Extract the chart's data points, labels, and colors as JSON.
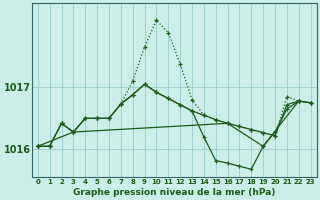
{
  "title": "Graphe pression niveau de la mer (hPa)",
  "background_color": "#cceee8",
  "grid_color": "#99cccc",
  "line_color": "#1a5c1a",
  "x_labels": [
    "0",
    "1",
    "2",
    "3",
    "4",
    "5",
    "6",
    "7",
    "8",
    "9",
    "10",
    "11",
    "12",
    "13",
    "14",
    "15",
    "16",
    "17",
    "18",
    "19",
    "20",
    "21",
    "22",
    "23"
  ],
  "ylim": [
    1015.55,
    1018.35
  ],
  "yticks": [
    1016,
    1017
  ],
  "peak_x": [
    0,
    1,
    2,
    3,
    4,
    5,
    6,
    7,
    8,
    9,
    10,
    11,
    12,
    13,
    14,
    15,
    16,
    17,
    18,
    19,
    20,
    21,
    22,
    23
  ],
  "peak_y": [
    1016.05,
    1016.05,
    1016.42,
    1016.28,
    1016.5,
    1016.5,
    1016.5,
    1016.73,
    1017.1,
    1017.65,
    1018.08,
    1017.88,
    1017.38,
    1016.8,
    1016.55,
    1016.48,
    1016.42,
    1016.37,
    1016.32,
    1016.27,
    1016.22,
    1016.85,
    1016.78,
    1016.75
  ],
  "flat_x": [
    0,
    1,
    2,
    3,
    4,
    5,
    6,
    7,
    8,
    9,
    10,
    11,
    12,
    13,
    14,
    15,
    16,
    17,
    18,
    19,
    20,
    21,
    22,
    23
  ],
  "flat_y": [
    1016.05,
    1016.05,
    1016.42,
    1016.28,
    1016.5,
    1016.5,
    1016.5,
    1016.73,
    1016.88,
    1017.05,
    1016.92,
    1016.82,
    1016.72,
    1016.62,
    1016.55,
    1016.48,
    1016.42,
    1016.37,
    1016.32,
    1016.27,
    1016.22,
    1016.72,
    1016.78,
    1016.75
  ],
  "low_x": [
    0,
    1,
    2,
    3,
    4,
    5,
    6,
    7,
    8,
    9,
    10,
    11,
    12,
    13,
    14,
    15,
    16,
    17,
    18,
    19,
    20,
    21,
    22,
    23
  ],
  "low_y": [
    1016.05,
    1016.05,
    1016.42,
    1016.28,
    1016.5,
    1016.5,
    1016.5,
    1016.73,
    1016.88,
    1017.05,
    1016.92,
    1016.82,
    1016.72,
    1016.62,
    1016.2,
    1015.82,
    1015.78,
    1015.73,
    1015.68,
    1016.05,
    1016.28,
    1016.65,
    1016.78,
    1016.75
  ],
  "sparse_x": [
    0,
    3,
    16,
    19,
    22
  ],
  "sparse_y": [
    1016.05,
    1016.28,
    1016.42,
    1016.05,
    1016.78
  ]
}
